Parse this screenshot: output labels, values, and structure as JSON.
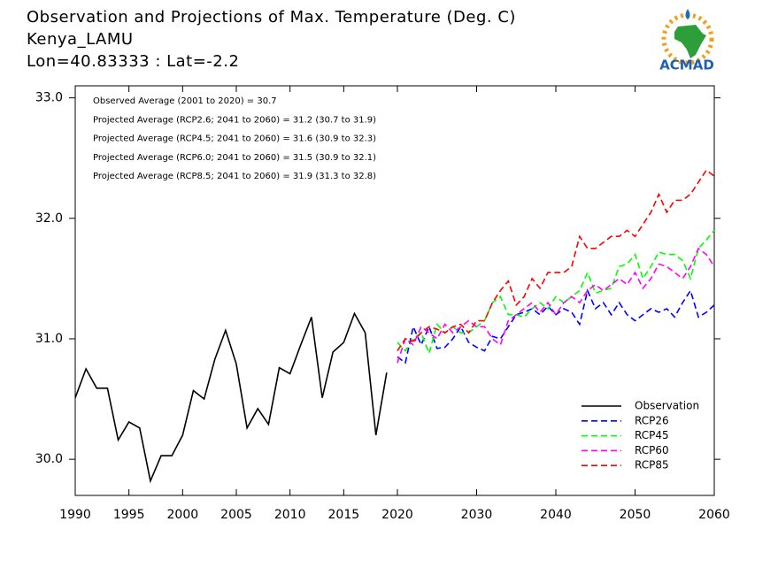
{
  "chart_data": {
    "type": "line",
    "title": [
      "Observation and Projections of Max. Temperature (Deg. C)",
      "Kenya_LAMU",
      "Lon=40.83333 : Lat=-2.2"
    ],
    "annotations": [
      "Observed Average (2001 to 2020) = 30.7",
      "Projected Average (RCP2.6; 2041 to 2060) = 31.2 (30.7 to 31.9)",
      "Projected Average (RCP4.5; 2041 to 2060) = 31.6 (30.9 to 32.3)",
      "Projected Average (RCP6.0; 2041 to 2060) = 31.5 (30.9 to 32.1)",
      "Projected Average (RCP8.5; 2041 to 2060) = 31.9 (31.3 to 32.8)"
    ],
    "logo": "ACMAD",
    "xlim": [
      1990,
      2060
    ],
    "xticks": [
      1990,
      1995,
      2000,
      2005,
      2010,
      2015,
      2020,
      2030,
      2040,
      2050,
      2060
    ],
    "ylim": [
      29.7,
      33.1
    ],
    "yticks": [
      {
        "value": 30,
        "label": "30.0"
      },
      {
        "value": 31,
        "label": "31.0"
      },
      {
        "value": 32,
        "label": "32.0"
      },
      {
        "value": 33,
        "label": "33.0"
      }
    ],
    "legend_position": "lower right",
    "series": [
      {
        "name": "Observation",
        "color": "#000000",
        "style": "solid",
        "x": [
          1990,
          1991,
          1992,
          1993,
          1994,
          1995,
          1996,
          1997,
          1998,
          1999,
          2000,
          2001,
          2002,
          2003,
          2004,
          2005,
          2006,
          2007,
          2008,
          2009,
          2010,
          2011,
          2012,
          2013,
          2014,
          2015,
          2016,
          2017,
          2018,
          2019
        ],
        "values": [
          30.51,
          30.75,
          30.59,
          30.59,
          30.16,
          30.31,
          30.26,
          29.82,
          30.03,
          30.03,
          30.2,
          30.57,
          30.5,
          30.83,
          31.07,
          30.79,
          30.26,
          30.42,
          30.29,
          30.76,
          30.71,
          30.95,
          31.18,
          30.51,
          30.89,
          30.97,
          31.21,
          31.05,
          30.2,
          30.72
        ]
      },
      {
        "name": "RCP26",
        "color": "#0000ff",
        "style": "dashed",
        "x": [
          2020,
          2021,
          2022,
          2023,
          2024,
          2025,
          2026,
          2027,
          2028,
          2029,
          2030,
          2031,
          2032,
          2033,
          2034,
          2035,
          2036,
          2037,
          2038,
          2039,
          2040,
          2041,
          2042,
          2043,
          2044,
          2045,
          2046,
          2047,
          2048,
          2049,
          2050,
          2051,
          2052,
          2053,
          2054,
          2055,
          2056,
          2057,
          2058,
          2059,
          2060
        ],
        "values": [
          30.85,
          30.8,
          31.1,
          30.95,
          31.1,
          30.92,
          30.93,
          31.0,
          31.1,
          30.97,
          30.93,
          30.9,
          31.02,
          31.0,
          31.1,
          31.2,
          31.22,
          31.25,
          31.2,
          31.27,
          31.2,
          31.25,
          31.22,
          31.12,
          31.4,
          31.25,
          31.3,
          31.2,
          31.3,
          31.2,
          31.15,
          31.2,
          31.25,
          31.22,
          31.25,
          31.18,
          31.3,
          31.4,
          31.18,
          31.22,
          31.28
        ]
      },
      {
        "name": "RCP45",
        "color": "#00ff00",
        "style": "dashed",
        "x": [
          2020,
          2021,
          2022,
          2023,
          2024,
          2025,
          2026,
          2027,
          2028,
          2029,
          2030,
          2031,
          2032,
          2033,
          2034,
          2035,
          2036,
          2037,
          2038,
          2039,
          2040,
          2041,
          2042,
          2043,
          2044,
          2045,
          2046,
          2047,
          2048,
          2049,
          2050,
          2051,
          2052,
          2053,
          2054,
          2055,
          2056,
          2057,
          2058,
          2059,
          2060
        ],
        "values": [
          30.97,
          30.9,
          31.0,
          31.05,
          30.88,
          31.12,
          31.05,
          31.1,
          31.05,
          31.05,
          31.1,
          31.15,
          31.3,
          31.35,
          31.2,
          31.2,
          31.18,
          31.25,
          31.3,
          31.25,
          31.35,
          31.3,
          31.35,
          31.4,
          31.55,
          31.38,
          31.4,
          31.42,
          31.6,
          31.62,
          31.7,
          31.5,
          31.6,
          31.72,
          31.7,
          31.7,
          31.65,
          31.5,
          31.75,
          31.82,
          31.9
        ]
      },
      {
        "name": "RCP60",
        "color": "#ff00ff",
        "style": "dashed",
        "x": [
          2020,
          2021,
          2022,
          2023,
          2024,
          2025,
          2026,
          2027,
          2028,
          2029,
          2030,
          2031,
          2032,
          2033,
          2034,
          2035,
          2036,
          2037,
          2038,
          2039,
          2040,
          2041,
          2042,
          2043,
          2044,
          2045,
          2046,
          2047,
          2048,
          2049,
          2050,
          2051,
          2052,
          2053,
          2054,
          2055,
          2056,
          2057,
          2058,
          2059,
          2060
        ],
        "values": [
          30.8,
          31.0,
          30.95,
          31.1,
          31.05,
          31.0,
          31.12,
          31.05,
          31.1,
          31.15,
          31.1,
          31.1,
          31.0,
          30.95,
          31.15,
          31.2,
          31.25,
          31.3,
          31.22,
          31.3,
          31.2,
          31.3,
          31.35,
          31.3,
          31.4,
          31.45,
          31.4,
          31.45,
          31.5,
          31.45,
          31.55,
          31.42,
          31.5,
          31.62,
          31.6,
          31.55,
          31.5,
          31.6,
          31.75,
          31.7,
          31.6
        ]
      },
      {
        "name": "RCP85",
        "color": "#ff0000",
        "style": "dashed",
        "x": [
          2020,
          2021,
          2022,
          2023,
          2024,
          2025,
          2026,
          2027,
          2028,
          2029,
          2030,
          2031,
          2032,
          2033,
          2034,
          2035,
          2036,
          2037,
          2038,
          2039,
          2040,
          2041,
          2042,
          2043,
          2044,
          2045,
          2046,
          2047,
          2048,
          2049,
          2050,
          2051,
          2052,
          2053,
          2054,
          2055,
          2056,
          2057,
          2058,
          2059,
          2060
        ],
        "values": [
          30.9,
          31.0,
          30.98,
          31.05,
          31.1,
          31.08,
          31.05,
          31.1,
          31.12,
          31.05,
          31.15,
          31.15,
          31.3,
          31.4,
          31.48,
          31.28,
          31.35,
          31.5,
          31.42,
          31.55,
          31.55,
          31.55,
          31.6,
          31.85,
          31.75,
          31.75,
          31.8,
          31.85,
          31.85,
          31.9,
          31.85,
          31.95,
          32.05,
          32.2,
          32.05,
          32.15,
          32.15,
          32.2,
          32.3,
          32.4,
          32.35
        ]
      }
    ]
  }
}
